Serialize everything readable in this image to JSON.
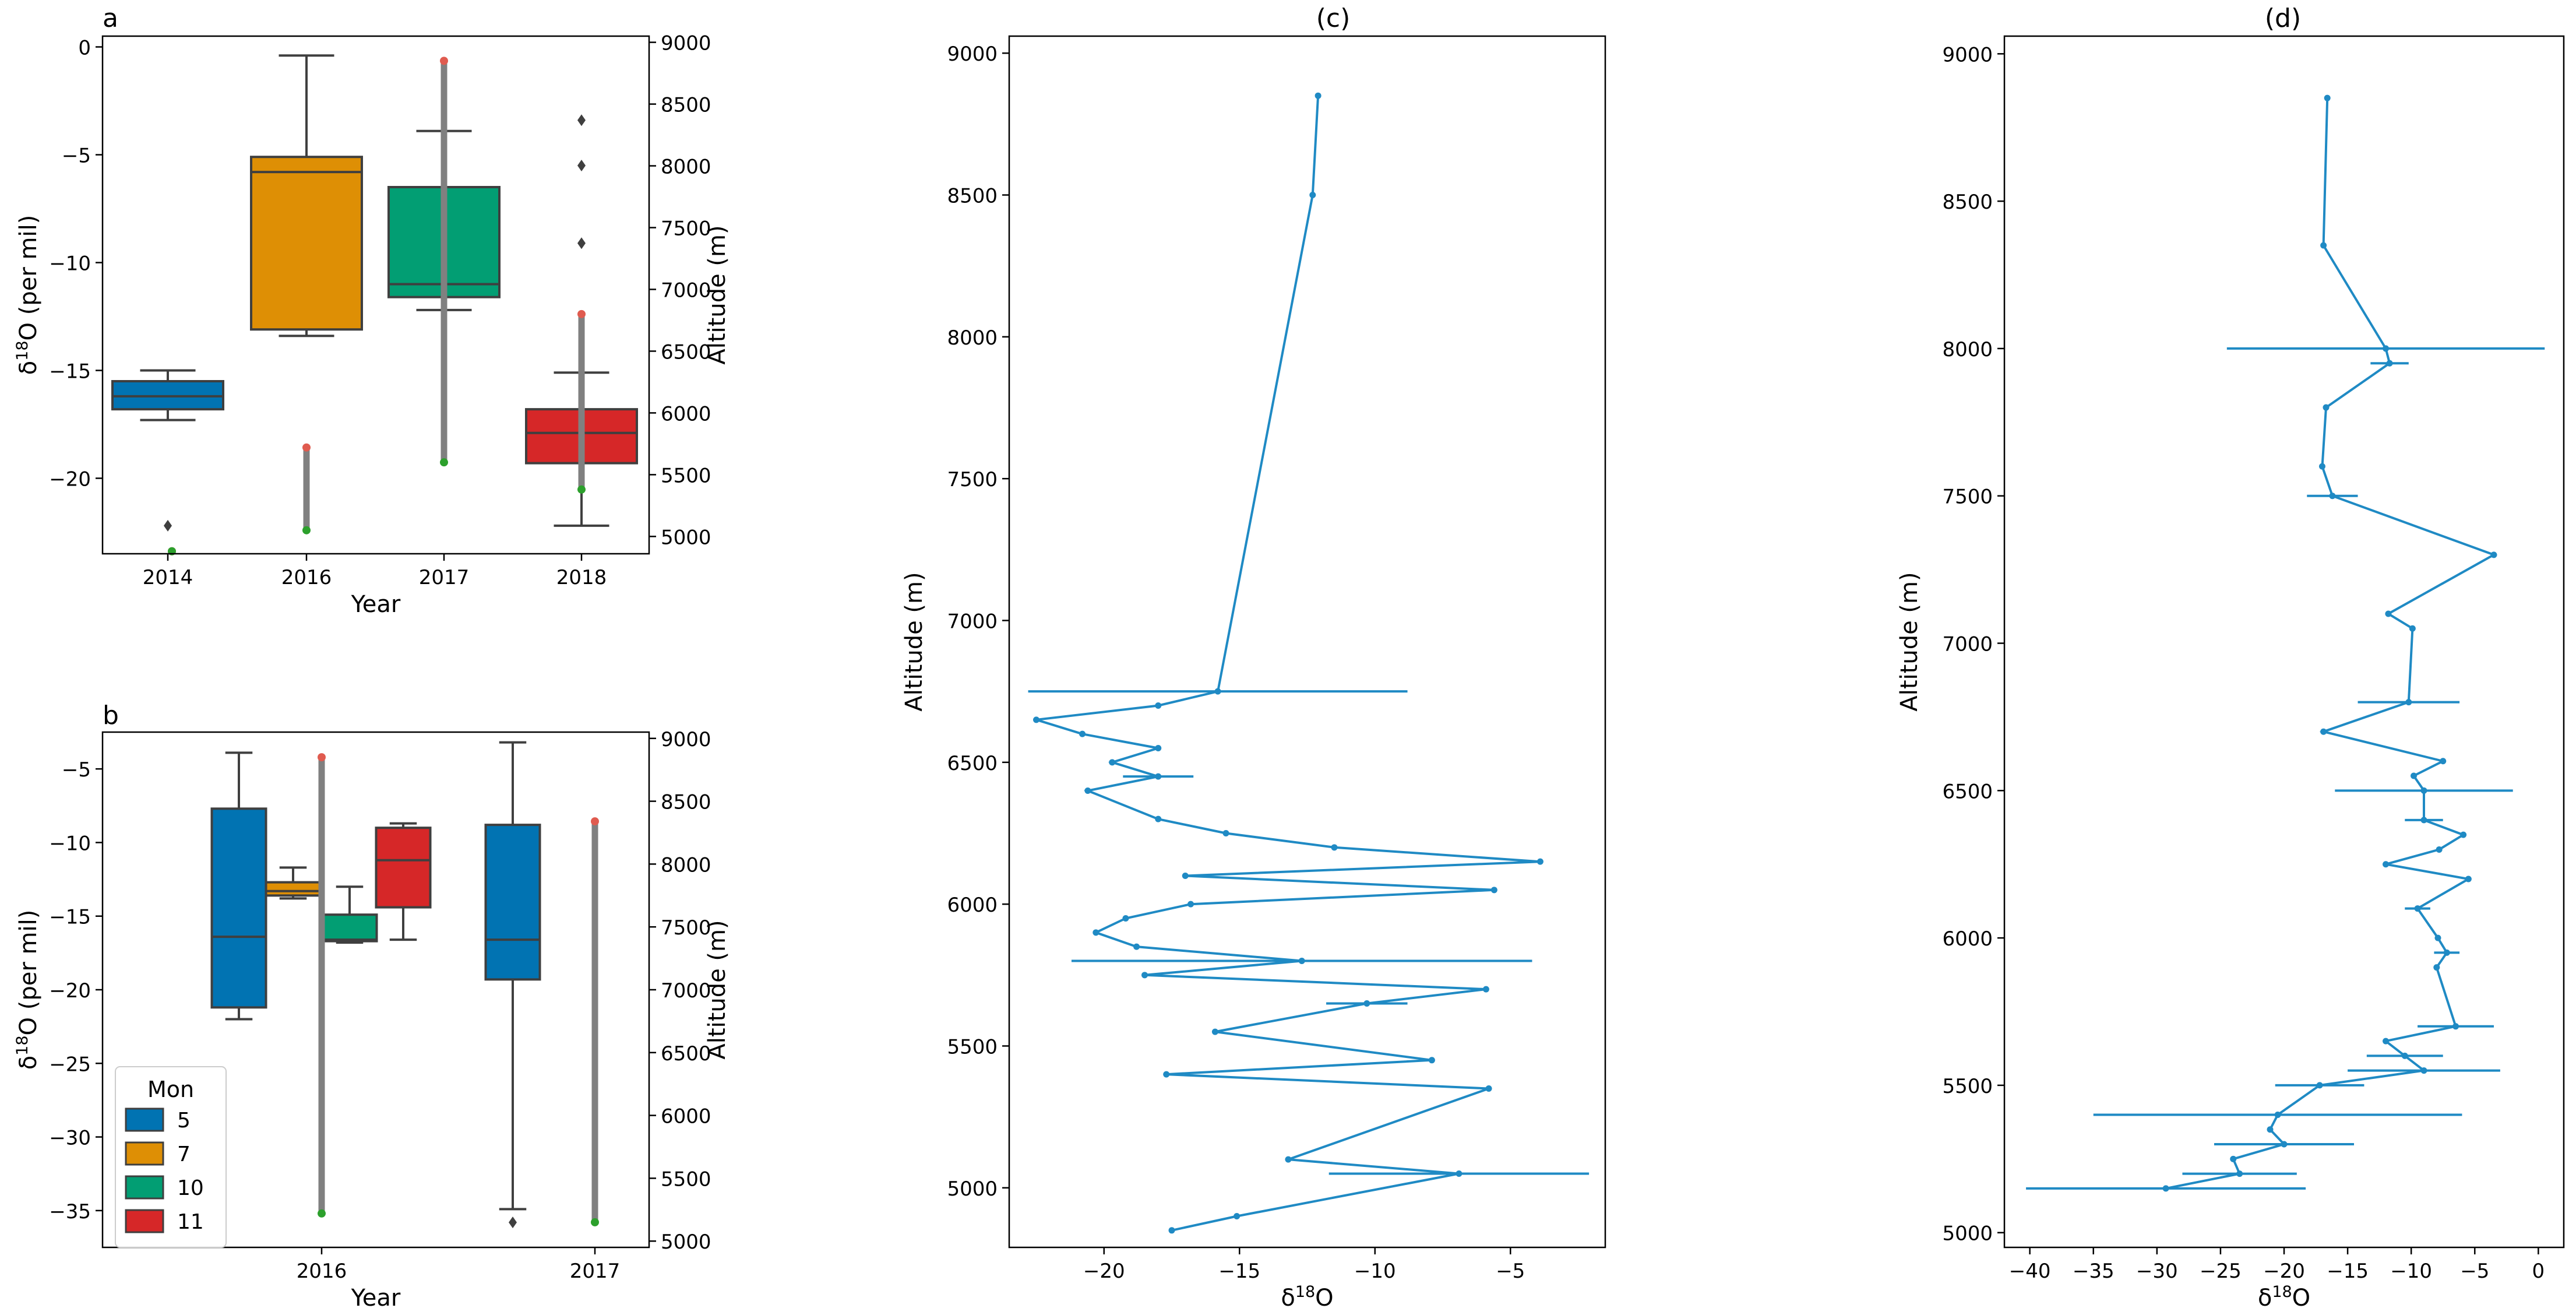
{
  "chart_data": [
    {
      "panel": "a",
      "type": "box",
      "xlabel": "Year",
      "ylabel_main": "δ",
      "ylabel_sup": "18",
      "ylabel_rest": "O (per mil)",
      "y2label": "Altitude (m)",
      "ylim": [
        -23.5,
        0.5
      ],
      "yticks": [
        0,
        -5,
        -10,
        -15,
        -20
      ],
      "y2lim": [
        4860,
        9050
      ],
      "y2ticks": [
        5000,
        5500,
        6000,
        6500,
        7000,
        7500,
        8000,
        8500,
        9000
      ],
      "categories": [
        "2014",
        "2016",
        "2017",
        "2018"
      ],
      "boxes": [
        {
          "category": "2014",
          "color": "#0173b2",
          "whislo": -17.3,
          "q1": -16.8,
          "med": -16.2,
          "q3": -15.5,
          "whishi": -15.0,
          "fliers": [
            -22.2
          ]
        },
        {
          "category": "2016",
          "color": "#de8f05",
          "whislo": -13.4,
          "q1": -13.1,
          "med": -5.8,
          "q3": -5.1,
          "whishi": -0.4,
          "fliers": []
        },
        {
          "category": "2017",
          "color": "#029e73",
          "whislo": -12.2,
          "q1": -11.6,
          "med": -11.0,
          "q3": -6.5,
          "whishi": -3.9,
          "fliers": []
        },
        {
          "category": "2018",
          "color": "#d62728",
          "whislo": -22.2,
          "q1": -19.3,
          "med": -17.9,
          "q3": -16.8,
          "whishi": -15.1,
          "fliers": [
            -3.4,
            -5.5,
            -9.1
          ]
        }
      ],
      "altitude_bars": [
        {
          "category": "2014",
          "top": 4880,
          "bottom": 4880
        },
        {
          "category": "2016",
          "top": 5720,
          "bottom": 5050
        },
        {
          "category": "2017",
          "top": 8850,
          "bottom": 5600
        },
        {
          "category": "2018",
          "top": 6800,
          "bottom": 5380
        }
      ]
    },
    {
      "panel": "b",
      "type": "box",
      "xlabel": "Year",
      "ylabel_main": "δ",
      "ylabel_sup": "18",
      "ylabel_rest": "O (per mil)",
      "y2label": "Altitude (m)",
      "ylim": [
        -37.5,
        -2.5
      ],
      "yticks": [
        -5,
        -10,
        -15,
        -20,
        -25,
        -30,
        -35
      ],
      "y2lim": [
        4950,
        9050
      ],
      "y2ticks": [
        5000,
        5500,
        6000,
        6500,
        7000,
        7500,
        8000,
        8500,
        9000
      ],
      "categories": [
        "2016",
        "2017"
      ],
      "legend": {
        "title": "Mon",
        "position": "lower-left",
        "entries": [
          {
            "label": "5",
            "color": "#0173b2"
          },
          {
            "label": "7",
            "color": "#de8f05"
          },
          {
            "label": "10",
            "color": "#029e73"
          },
          {
            "label": "11",
            "color": "#d62728"
          }
        ]
      },
      "boxes": [
        {
          "category": "2016",
          "month": "5",
          "color": "#0173b2",
          "whislo": -22.0,
          "q1": -21.2,
          "med": -16.4,
          "q3": -7.7,
          "whishi": -3.9,
          "fliers": []
        },
        {
          "category": "2016",
          "month": "7",
          "color": "#de8f05",
          "whislo": -13.8,
          "q1": -13.6,
          "med": -13.3,
          "q3": -12.7,
          "whishi": -11.7,
          "fliers": []
        },
        {
          "category": "2016",
          "month": "10",
          "color": "#029e73",
          "whislo": -16.8,
          "q1": -16.7,
          "med": -16.6,
          "q3": -14.9,
          "whishi": -13.0,
          "fliers": []
        },
        {
          "category": "2016",
          "month": "11",
          "color": "#d62728",
          "whislo": -16.6,
          "q1": -14.4,
          "med": -11.2,
          "q3": -9.0,
          "whishi": -8.7,
          "fliers": []
        },
        {
          "category": "2017",
          "month": "5",
          "color": "#0173b2",
          "whislo": -34.9,
          "q1": -19.3,
          "med": -16.6,
          "q3": -8.8,
          "whishi": -3.2,
          "fliers": [
            -35.8
          ]
        }
      ],
      "altitude_bars": [
        {
          "category": "2016",
          "top": 8850,
          "bottom": 5220
        },
        {
          "category": "2017",
          "top": 8340,
          "bottom": 5150
        }
      ]
    },
    {
      "panel": "c",
      "type": "line",
      "title": "(c)",
      "xlabel_main": "δ",
      "xlabel_sup": "18",
      "xlabel_rest": "O",
      "ylabel": "Altitude (m)",
      "xlim": [
        -23.5,
        -1.5
      ],
      "xticks": [
        -20,
        -15,
        -10,
        -5
      ],
      "ylim": [
        4790,
        9060
      ],
      "yticks": [
        5000,
        5500,
        6000,
        6500,
        7000,
        7500,
        8000,
        8500,
        9000
      ],
      "color": "#1f8ac4",
      "points": [
        {
          "x": -12.1,
          "y": 8850
        },
        {
          "x": -12.3,
          "y": 8500
        },
        {
          "x": -15.8,
          "y": 6750,
          "xerr": 7.0
        },
        {
          "x": -18.0,
          "y": 6700
        },
        {
          "x": -22.5,
          "y": 6650
        },
        {
          "x": -20.8,
          "y": 6600
        },
        {
          "x": -18.0,
          "y": 6550
        },
        {
          "x": -19.7,
          "y": 6500
        },
        {
          "x": -18.0,
          "y": 6450,
          "xerr": 1.3
        },
        {
          "x": -20.6,
          "y": 6400
        },
        {
          "x": -18.0,
          "y": 6300
        },
        {
          "x": -15.5,
          "y": 6250
        },
        {
          "x": -11.5,
          "y": 6200
        },
        {
          "x": -3.9,
          "y": 6150
        },
        {
          "x": -17.0,
          "y": 6100
        },
        {
          "x": -5.6,
          "y": 6050
        },
        {
          "x": -16.8,
          "y": 6000
        },
        {
          "x": -19.2,
          "y": 5950
        },
        {
          "x": -20.3,
          "y": 5900
        },
        {
          "x": -18.8,
          "y": 5850
        },
        {
          "x": -12.7,
          "y": 5800,
          "xerr": 8.5
        },
        {
          "x": -18.5,
          "y": 5750
        },
        {
          "x": -5.9,
          "y": 5700
        },
        {
          "x": -10.3,
          "y": 5650,
          "xerr": 1.5
        },
        {
          "x": -15.9,
          "y": 5550
        },
        {
          "x": -7.9,
          "y": 5450
        },
        {
          "x": -17.7,
          "y": 5400
        },
        {
          "x": -5.8,
          "y": 5350
        },
        {
          "x": -13.2,
          "y": 5100
        },
        {
          "x": -6.9,
          "y": 5050,
          "xerr": 4.8
        },
        {
          "x": -15.1,
          "y": 4900
        },
        {
          "x": -17.5,
          "y": 4850
        }
      ]
    },
    {
      "panel": "d",
      "type": "line",
      "title": "(d)",
      "xlabel_main": "δ",
      "xlabel_sup": "18",
      "xlabel_rest": "O",
      "ylabel": "Altitude (m)",
      "xlim": [
        -42,
        2
      ],
      "xticks": [
        -40,
        -35,
        -30,
        -25,
        -20,
        -15,
        -10,
        -5,
        0
      ],
      "ylim": [
        4950,
        9060
      ],
      "yticks": [
        5000,
        5500,
        6000,
        6500,
        7000,
        7500,
        8000,
        8500,
        9000
      ],
      "color": "#1f8ac4",
      "points": [
        {
          "x": -16.6,
          "y": 8850
        },
        {
          "x": -16.9,
          "y": 8350
        },
        {
          "x": -12.0,
          "y": 8000,
          "xerr": 12.5
        },
        {
          "x": -11.7,
          "y": 7950,
          "xerr": 1.5
        },
        {
          "x": -16.7,
          "y": 7800
        },
        {
          "x": -17.0,
          "y": 7600
        },
        {
          "x": -16.2,
          "y": 7500,
          "xerr": 2.0
        },
        {
          "x": -3.5,
          "y": 7300
        },
        {
          "x": -11.8,
          "y": 7100
        },
        {
          "x": -9.9,
          "y": 7050
        },
        {
          "x": -10.2,
          "y": 6800,
          "xerr": 4.0
        },
        {
          "x": -16.9,
          "y": 6700
        },
        {
          "x": -7.5,
          "y": 6600
        },
        {
          "x": -9.8,
          "y": 6550
        },
        {
          "x": -9.0,
          "y": 6500,
          "xerr": 7.0
        },
        {
          "x": -9.0,
          "y": 6400,
          "xerr": 1.5
        },
        {
          "x": -5.9,
          "y": 6350
        },
        {
          "x": -7.8,
          "y": 6300
        },
        {
          "x": -12.0,
          "y": 6250
        },
        {
          "x": -5.5,
          "y": 6200
        },
        {
          "x": -9.5,
          "y": 6100,
          "xerr": 1.0
        },
        {
          "x": -7.9,
          "y": 6000
        },
        {
          "x": -7.2,
          "y": 5950,
          "xerr": 1.0
        },
        {
          "x": -8.0,
          "y": 5900
        },
        {
          "x": -6.5,
          "y": 5700,
          "xerr": 3.0
        },
        {
          "x": -12.0,
          "y": 5650
        },
        {
          "x": -10.5,
          "y": 5600,
          "xerr": 3.0
        },
        {
          "x": -9.0,
          "y": 5550,
          "xerr": 6.0
        },
        {
          "x": -17.2,
          "y": 5500,
          "xerr": 3.5
        },
        {
          "x": -20.5,
          "y": 5400,
          "xerr": 14.5
        },
        {
          "x": -21.1,
          "y": 5350
        },
        {
          "x": -20.0,
          "y": 5300,
          "xerr": 5.5
        },
        {
          "x": -24.0,
          "y": 5250
        },
        {
          "x": -23.5,
          "y": 5200,
          "xerr": 4.5
        },
        {
          "x": -29.3,
          "y": 5150,
          "xerr": 11.0
        }
      ]
    }
  ]
}
